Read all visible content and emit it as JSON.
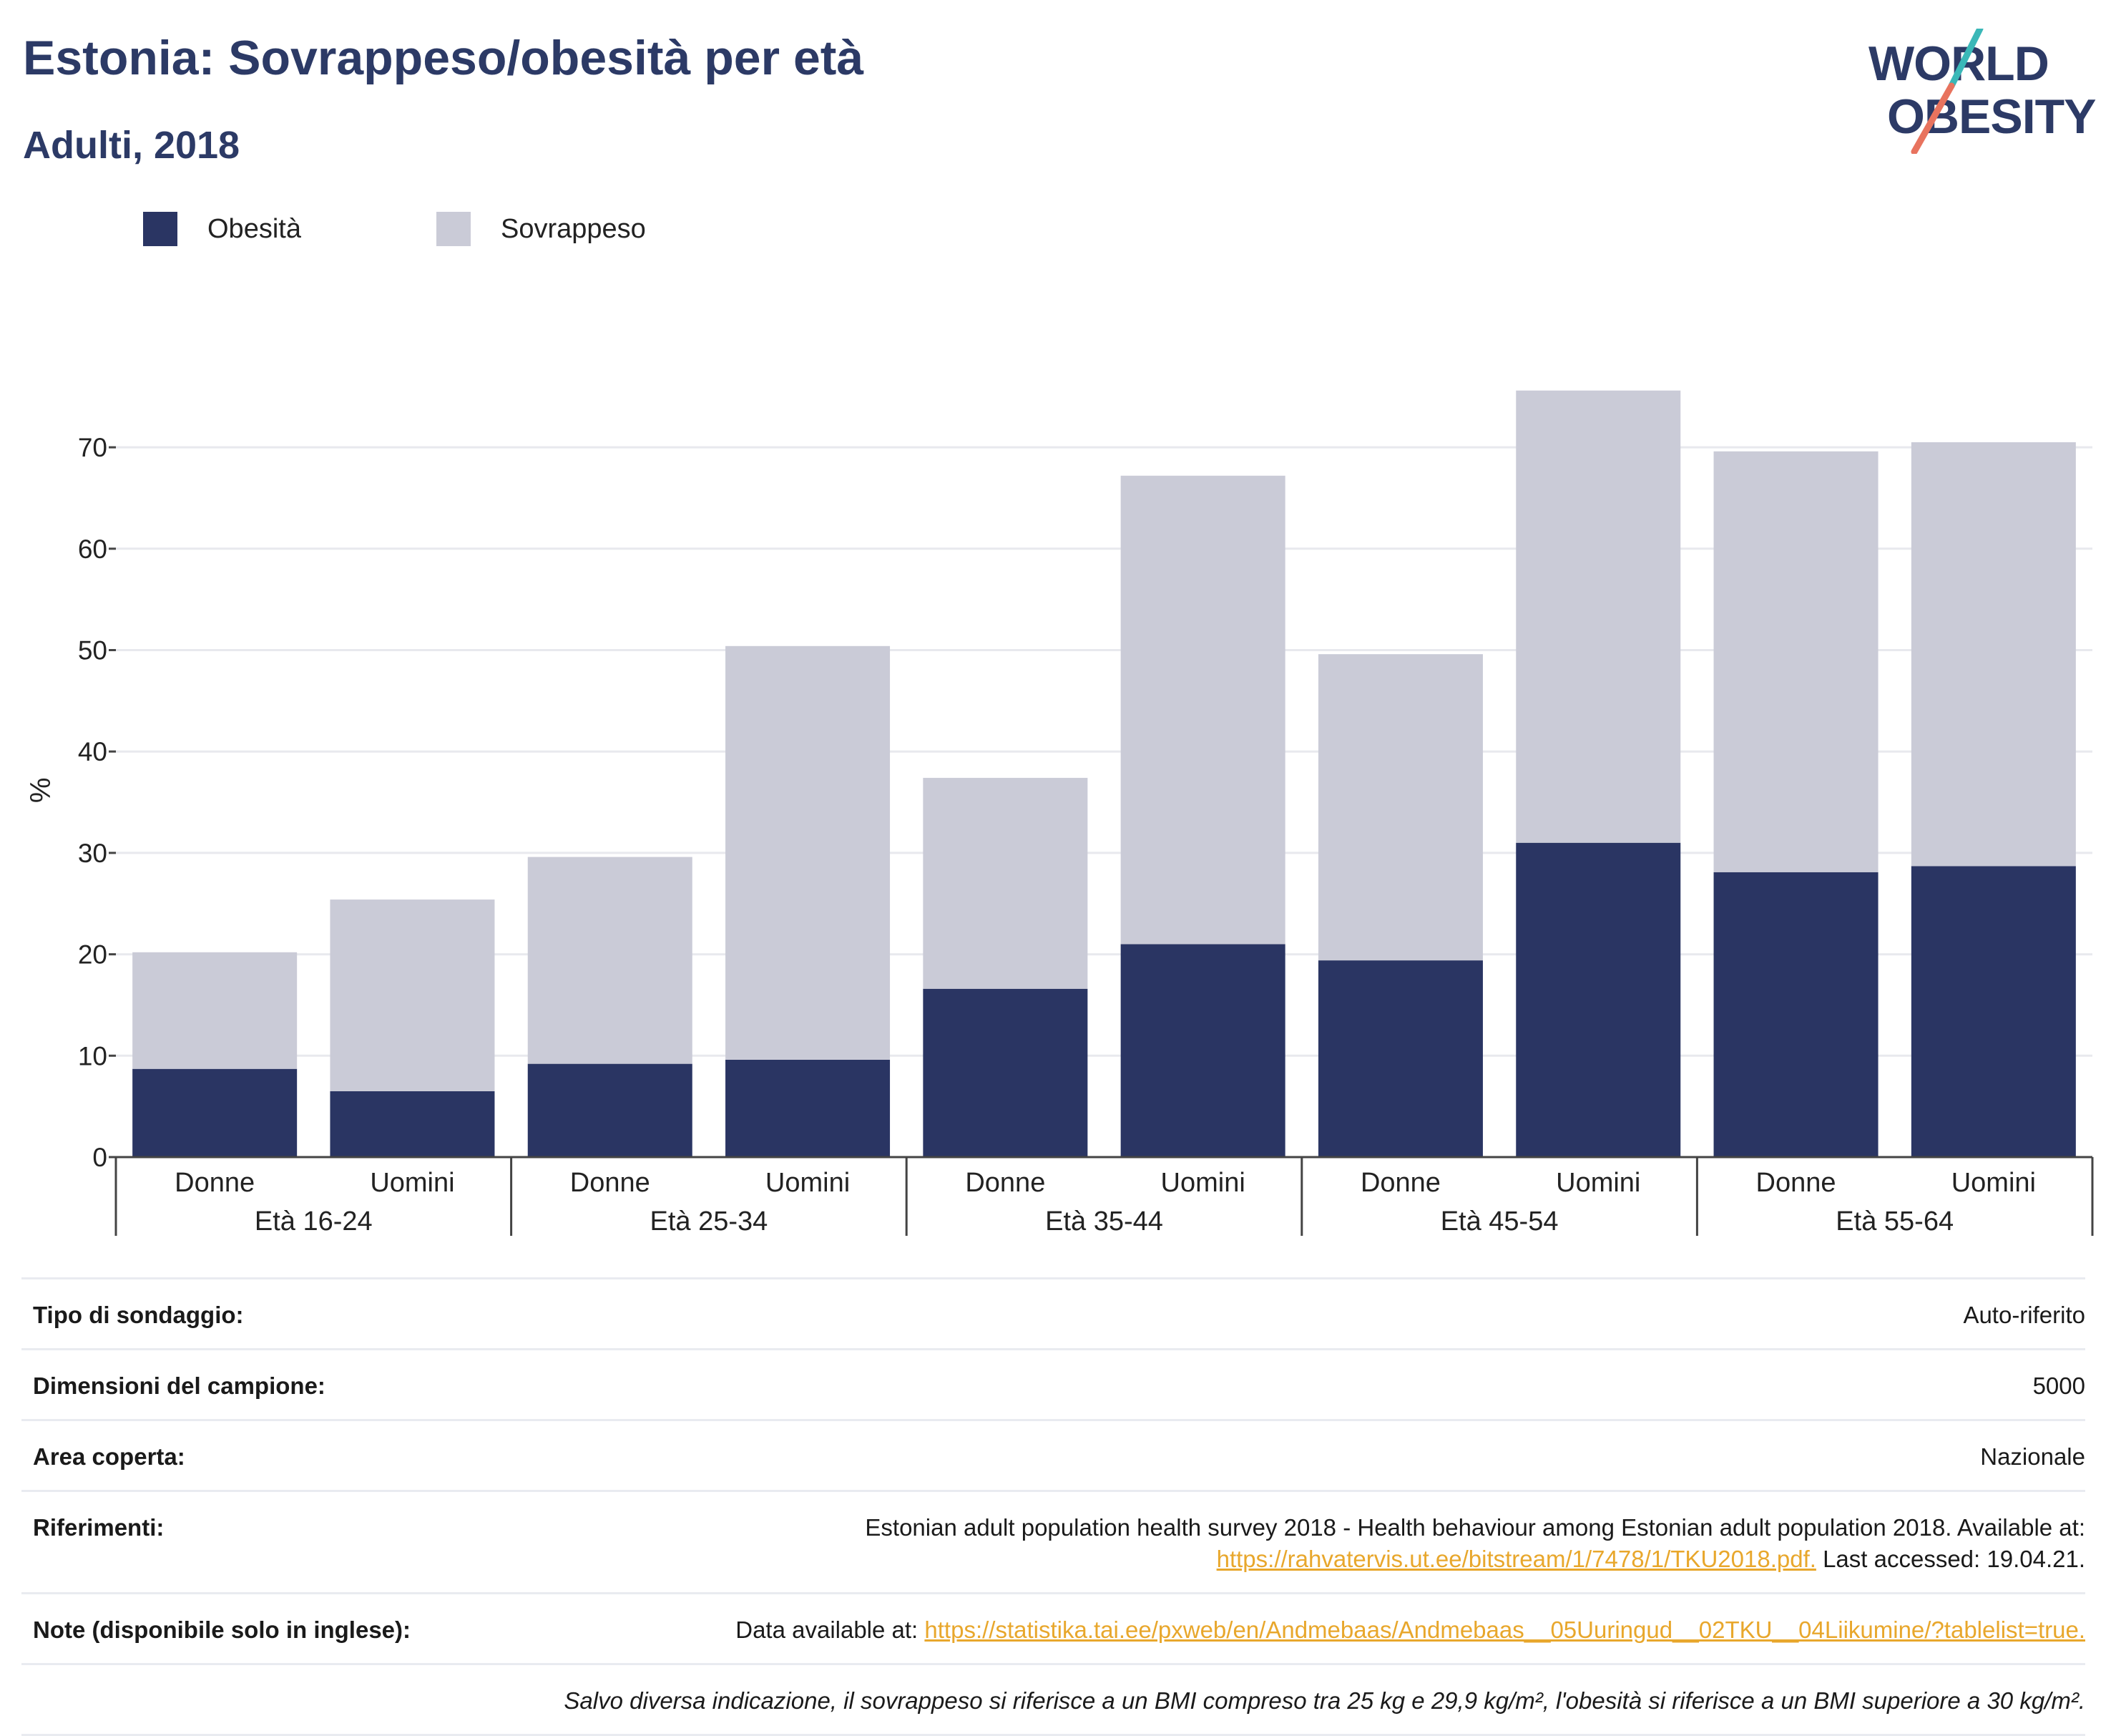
{
  "header": {
    "title": "Estonia: Sovrappeso/obesità per età",
    "subtitle": "Adulti, 2018"
  },
  "logo": {
    "line1": "WORLD",
    "line2": "OBESITY",
    "accent_teal": "#3ab8b8",
    "accent_coral": "#e8735e",
    "text_color": "#2c3a66"
  },
  "legend": [
    {
      "label": "Obesità",
      "color": "#2a3563"
    },
    {
      "label": "Sovrappeso",
      "color": "#cacbd7"
    }
  ],
  "chart_data": {
    "type": "bar",
    "stacked": true,
    "ylabel": "%",
    "ylim": [
      0,
      78
    ],
    "yticks": [
      0,
      10,
      20,
      30,
      40,
      50,
      60,
      70
    ],
    "grid": true,
    "groups": [
      "Età 16-24",
      "Età 25-34",
      "Età 35-44",
      "Età 45-54",
      "Età 55-64"
    ],
    "subcategories": [
      "Donne",
      "Uomini"
    ],
    "series": [
      {
        "name": "Obesità",
        "color": "#2a3563",
        "values": [
          8.7,
          6.5,
          9.2,
          9.6,
          16.6,
          21.0,
          19.4,
          31.0,
          28.1,
          28.7
        ]
      },
      {
        "name": "Sovrappeso",
        "color": "#cacbd7",
        "values": [
          11.5,
          18.9,
          20.4,
          40.8,
          20.8,
          46.2,
          30.2,
          44.6,
          41.5,
          41.8
        ]
      }
    ]
  },
  "info": [
    {
      "key": "Tipo di sondaggio:",
      "value": "Auto-riferito"
    },
    {
      "key": "Dimensioni del campione:",
      "value": "5000"
    },
    {
      "key": "Area coperta:",
      "value": "Nazionale"
    },
    {
      "key": "Riferimenti:",
      "value_line1": "Estonian adult population health survey 2018 - Health behaviour among Estonian adult population 2018. Available at:",
      "link": "https://rahvatervis.ut.ee/bitstream/1/7478/1/TKU2018.pdf.",
      "value_after_link": " Last accessed: 19.04.21."
    },
    {
      "key": "Note (disponibile solo in inglese):",
      "value_before_link": "Data available at: ",
      "link": "https://statistika.tai.ee/pxweb/en/Andmebaas/Andmebaas__05Uuringud__02TKU__04Liikumine/?tablelist=true."
    }
  ],
  "footnote": "Salvo diversa indicazione, il sovrappeso si riferisce a un BMI compreso tra 25 kg e 29,9 kg/m², l'obesità si riferisce a un BMI superiore a 30 kg/m²."
}
